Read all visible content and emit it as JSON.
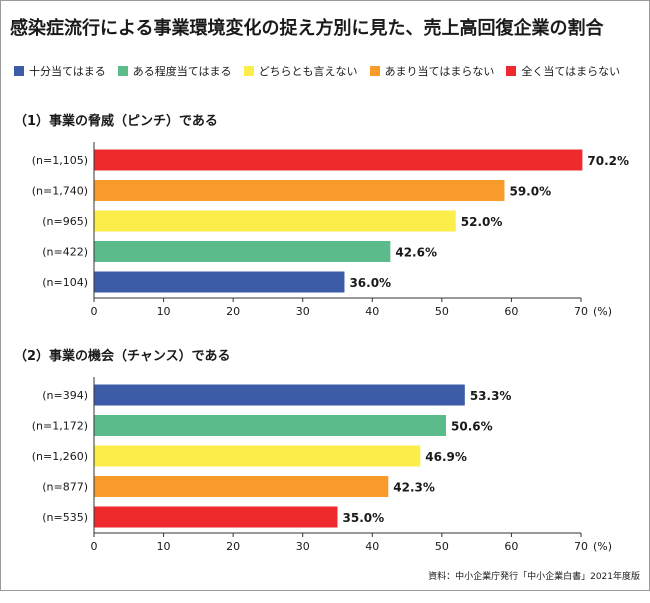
{
  "title": "感染症流行による事業環境変化の捉え方別に見た、売上高回復企業の割合",
  "legend": [
    {
      "label": "十分当てはまる",
      "color": "#3d5ca8"
    },
    {
      "label": "ある程度当てはまる",
      "color": "#5cbb8a"
    },
    {
      "label": "どちらとも言えない",
      "color": "#fbee4a"
    },
    {
      "label": "あまり当てはまらない",
      "color": "#f89b2a"
    },
    {
      "label": "全く当てはまらない",
      "color": "#ee2a2e"
    }
  ],
  "source": "資料：中小企業庁発行「中小企業白書」2021年度版",
  "chart_data": [
    {
      "type": "bar",
      "orientation": "horizontal",
      "title": "（1）事業の脅威（ピンチ）である",
      "categories": [
        "(n=1,105)",
        "(n=1,740)",
        "(n=965)",
        "(n=422)",
        "(n=104)"
      ],
      "values": [
        70.2,
        59.0,
        52.0,
        42.6,
        36.0
      ],
      "value_labels": [
        "70.2%",
        "59.0%",
        "52.0%",
        "42.6%",
        "36.0%"
      ],
      "colors": [
        "#ee2a2e",
        "#f89b2a",
        "#fbee4a",
        "#5cbb8a",
        "#3d5ca8"
      ],
      "xlim": [
        0,
        70
      ],
      "xticks": [
        "0",
        "10",
        "20",
        "30",
        "40",
        "50",
        "60",
        "70"
      ],
      "unit": "(%)"
    },
    {
      "type": "bar",
      "orientation": "horizontal",
      "title": "（2）事業の機会（チャンス）である",
      "categories": [
        "(n=394)",
        "(n=1,172)",
        "(n=1,260)",
        "(n=877)",
        "(n=535)"
      ],
      "values": [
        53.3,
        50.6,
        46.9,
        42.3,
        35.0
      ],
      "value_labels": [
        "53.3%",
        "50.6%",
        "46.9%",
        "42.3%",
        "35.0%"
      ],
      "colors": [
        "#3d5ca8",
        "#5cbb8a",
        "#fbee4a",
        "#f89b2a",
        "#ee2a2e"
      ],
      "xlim": [
        0,
        70
      ],
      "xticks": [
        "0",
        "10",
        "20",
        "30",
        "40",
        "50",
        "60",
        "70"
      ],
      "unit": "(%)"
    }
  ]
}
